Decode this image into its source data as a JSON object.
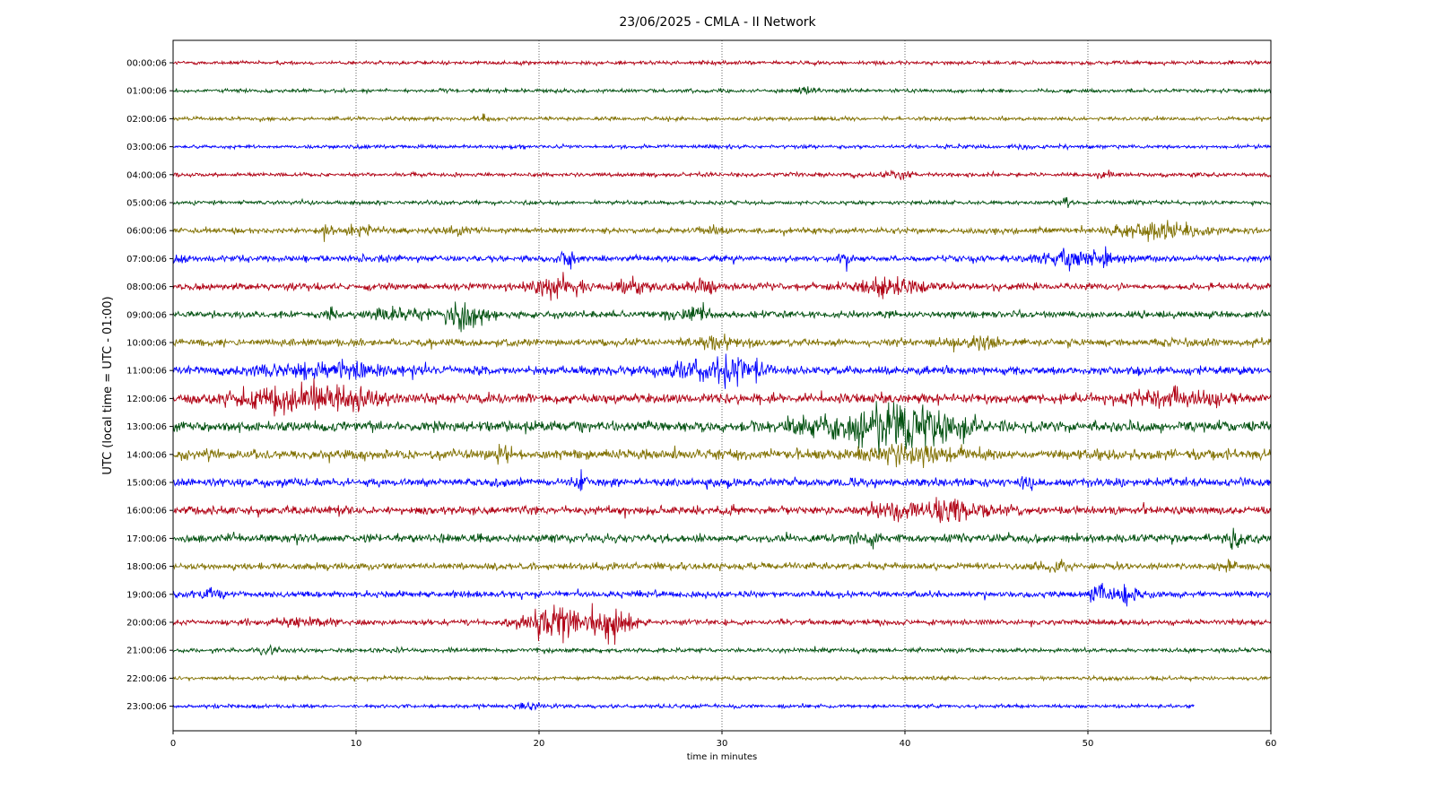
{
  "chart_data": {
    "type": "line",
    "title": "23/06/2025 - CMLA - II Network",
    "xlabel": "time in minutes",
    "ylabel": "UTC (local time = UTC - 01:00)",
    "xlim": [
      0,
      60
    ],
    "x_ticks": [
      "0",
      "10",
      "20",
      "30",
      "40",
      "50",
      "60"
    ],
    "grid": "vertical dotted at x ticks",
    "line_colors": [
      "#b00013",
      "#00500f",
      "#807000",
      "#0000ff"
    ],
    "rows": [
      {
        "label": "00:00:06",
        "noise": 0.3,
        "events": []
      },
      {
        "label": "01:00:06",
        "noise": 0.3,
        "events": [
          [
            34.6,
            0.3,
            0.5
          ]
        ]
      },
      {
        "label": "02:00:06",
        "noise": 0.3,
        "events": [
          [
            17.0,
            0.3,
            0.4
          ]
        ]
      },
      {
        "label": "03:00:06",
        "noise": 0.3,
        "events": [
          [
            46.5,
            0.2,
            0.5
          ]
        ]
      },
      {
        "label": "04:00:06",
        "noise": 0.32,
        "events": [
          [
            39.5,
            0.6,
            0.5
          ],
          [
            51.0,
            0.3,
            0.4
          ]
        ]
      },
      {
        "label": "05:00:06",
        "noise": 0.32,
        "events": [
          [
            48.8,
            0.2,
            0.6
          ]
        ]
      },
      {
        "label": "06:00:06",
        "noise": 0.45,
        "events": [
          [
            8.6,
            0.3,
            1.3
          ],
          [
            10.2,
            0.8,
            0.7
          ],
          [
            15.6,
            0.6,
            0.6
          ],
          [
            29.5,
            0.5,
            0.6
          ],
          [
            54.0,
            1.5,
            1.4
          ]
        ]
      },
      {
        "label": "07:00:06",
        "noise": 0.5,
        "events": [
          [
            0.3,
            0.3,
            0.7
          ],
          [
            21.5,
            0.3,
            1.3
          ],
          [
            36.6,
            0.4,
            0.7
          ],
          [
            49.5,
            1.5,
            1.4
          ]
        ]
      },
      {
        "label": "08:00:06",
        "noise": 0.55,
        "events": [
          [
            20.8,
            1.0,
            1.6
          ],
          [
            25.3,
            0.8,
            1.2
          ],
          [
            29.0,
            0.5,
            1.2
          ],
          [
            39.5,
            1.3,
            1.2
          ]
        ]
      },
      {
        "label": "09:00:06",
        "noise": 0.55,
        "events": [
          [
            8.6,
            0.2,
            1.5
          ],
          [
            12.5,
            1.0,
            0.9
          ],
          [
            16.0,
            0.8,
            2.4
          ],
          [
            28.4,
            0.8,
            0.8
          ]
        ]
      },
      {
        "label": "10:00:06",
        "noise": 0.6,
        "events": [
          [
            30.0,
            0.8,
            0.8
          ],
          [
            44.0,
            1.0,
            0.7
          ]
        ]
      },
      {
        "label": "11:00:06",
        "noise": 0.65,
        "events": [
          [
            8.3,
            2.5,
            1.2
          ],
          [
            29.0,
            2.0,
            1.2
          ],
          [
            31.0,
            0.8,
            1.6
          ]
        ]
      },
      {
        "label": "12:00:06",
        "noise": 0.75,
        "events": [
          [
            7.5,
            2.5,
            2.0
          ],
          [
            55.0,
            2.0,
            0.9
          ]
        ]
      },
      {
        "label": "13:00:06",
        "noise": 0.85,
        "events": [
          [
            38.6,
            1.5,
            2.8
          ],
          [
            40.4,
            0.8,
            2.6
          ],
          [
            42.8,
            0.9,
            1.5
          ],
          [
            35.0,
            1.5,
            1.0
          ]
        ]
      },
      {
        "label": "14:00:06",
        "noise": 0.8,
        "events": [
          [
            40.5,
            2.0,
            1.2
          ],
          [
            18.0,
            0.4,
            1.0
          ]
        ]
      },
      {
        "label": "15:00:06",
        "noise": 0.65,
        "events": [
          [
            22.3,
            0.3,
            0.9
          ],
          [
            46.7,
            0.3,
            0.9
          ]
        ]
      },
      {
        "label": "16:00:06",
        "noise": 0.65,
        "events": [
          [
            42.5,
            1.5,
            1.6
          ],
          [
            39.3,
            0.8,
            1.0
          ]
        ]
      },
      {
        "label": "17:00:06",
        "noise": 0.65,
        "events": [
          [
            58.0,
            0.4,
            1.0
          ],
          [
            37.8,
            0.5,
            0.8
          ]
        ]
      },
      {
        "label": "18:00:06",
        "noise": 0.55,
        "events": [
          [
            48.0,
            0.5,
            0.8
          ],
          [
            57.6,
            0.3,
            0.9
          ]
        ]
      },
      {
        "label": "19:00:06",
        "noise": 0.5,
        "events": [
          [
            2.0,
            0.4,
            0.8
          ],
          [
            50.4,
            0.3,
            1.0
          ],
          [
            51.8,
            0.7,
            1.2
          ]
        ]
      },
      {
        "label": "20:00:06",
        "noise": 0.45,
        "events": [
          [
            21.0,
            1.2,
            2.6
          ],
          [
            24.1,
            0.7,
            2.4
          ],
          [
            7.0,
            1.0,
            0.7
          ]
        ]
      },
      {
        "label": "21:00:06",
        "noise": 0.35,
        "events": [
          [
            5.3,
            0.4,
            0.6
          ]
        ]
      },
      {
        "label": "22:00:06",
        "noise": 0.3,
        "events": []
      },
      {
        "label": "23:00:06",
        "noise": 0.3,
        "events": [
          [
            19.5,
            0.5,
            0.5
          ]
        ],
        "end_minute": 55.8
      }
    ]
  }
}
